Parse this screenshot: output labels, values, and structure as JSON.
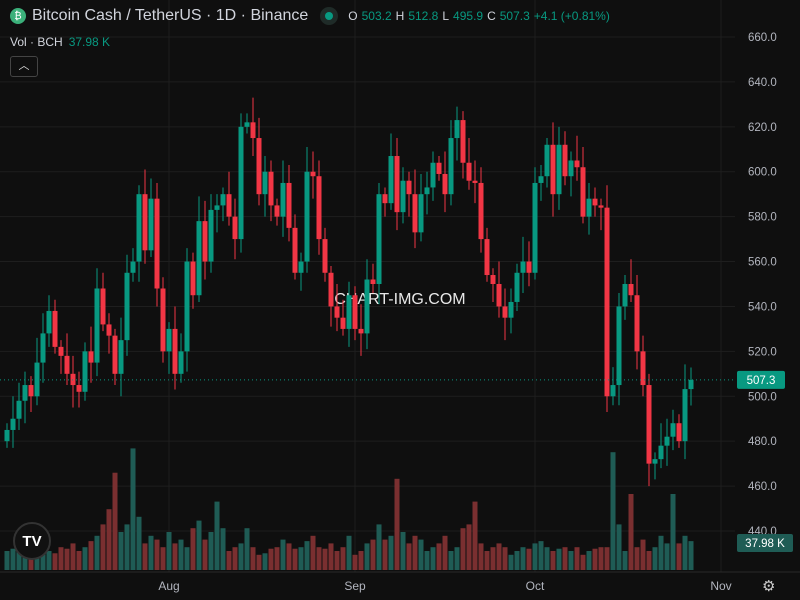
{
  "header": {
    "title": "Bitcoin Cash / TetherUS · 1D · Binance",
    "o_label": "O",
    "o": "503.2",
    "h_label": "H",
    "h": "512.8",
    "l_label": "L",
    "l": "495.9",
    "c_label": "C",
    "c": "507.3",
    "change": "+4.1 (+0.81%)"
  },
  "volume_legend": {
    "label": "Vol · BCH",
    "value": "37.98 K"
  },
  "watermark": "CHART-IMG.COM",
  "colors": {
    "up": "#089981",
    "down": "#f23645",
    "up_vol": "#1f5c55",
    "down_vol": "#7a2f30",
    "background": "#0f0f0f"
  },
  "chart_data": {
    "type": "candlestick",
    "symbol": "BCHUSDT",
    "interval": "1D",
    "start_date": "2024-07-05",
    "ylim": [
      430,
      665
    ],
    "y_ticks": [
      440,
      460,
      480,
      500,
      520,
      540,
      560,
      580,
      600,
      620,
      640,
      660
    ],
    "x_ticks": [
      {
        "label": "Aug",
        "date": "2024-08-01"
      },
      {
        "label": "Sep",
        "date": "2024-09-01"
      },
      {
        "label": "Oct",
        "date": "2024-10-01"
      },
      {
        "label": "Nov",
        "date": "2024-11-01"
      }
    ],
    "last_price_label": "507.3",
    "last_volume_label": "37.98 K",
    "close": [
      485,
      490,
      498,
      505,
      500,
      515,
      528,
      538,
      522,
      518,
      510,
      505,
      502,
      520,
      515,
      548,
      532,
      527,
      510,
      525,
      555,
      560,
      590,
      565,
      588,
      548,
      520,
      530,
      510,
      520,
      560,
      545,
      578,
      560,
      583,
      585,
      590,
      580,
      570,
      620,
      622,
      615,
      590,
      600,
      585,
      580,
      595,
      575,
      555,
      560,
      600,
      598,
      570,
      555,
      540,
      535,
      530,
      545,
      530,
      528,
      552,
      550,
      590,
      586,
      607,
      582,
      596,
      590,
      573,
      590,
      593,
      604,
      599,
      590,
      615,
      623,
      604,
      596,
      595,
      570,
      554,
      550,
      540,
      535,
      542,
      555,
      560,
      555,
      595,
      598,
      612,
      590,
      612,
      598,
      605,
      602,
      580,
      588,
      585,
      584,
      500,
      505,
      540,
      550,
      545,
      520,
      505,
      470,
      472,
      478,
      482,
      488,
      480,
      503.2,
      507.3
    ],
    "volume_k": [
      25,
      28,
      30,
      35,
      40,
      30,
      28,
      25,
      22,
      30,
      28,
      35,
      25,
      30,
      38,
      45,
      60,
      80,
      128,
      50,
      60,
      160,
      70,
      35,
      45,
      40,
      30,
      50,
      35,
      40,
      30,
      55,
      65,
      40,
      50,
      90,
      55,
      25,
      30,
      35,
      55,
      30,
      20,
      22,
      28,
      30,
      40,
      35,
      28,
      30,
      38,
      45,
      30,
      28,
      35,
      25,
      30,
      45,
      20,
      25,
      35,
      40,
      60,
      40,
      45,
      120,
      50,
      35,
      45,
      40,
      25,
      30,
      35,
      45,
      25,
      30,
      55,
      60,
      90,
      35,
      25,
      30,
      35,
      30,
      20,
      25,
      30,
      28,
      35,
      38,
      30,
      25,
      28,
      30,
      25,
      30,
      20,
      25,
      28,
      30,
      30,
      155,
      60,
      25,
      100,
      30,
      40,
      25,
      30,
      45,
      35,
      100,
      35,
      45,
      37.98
    ]
  }
}
